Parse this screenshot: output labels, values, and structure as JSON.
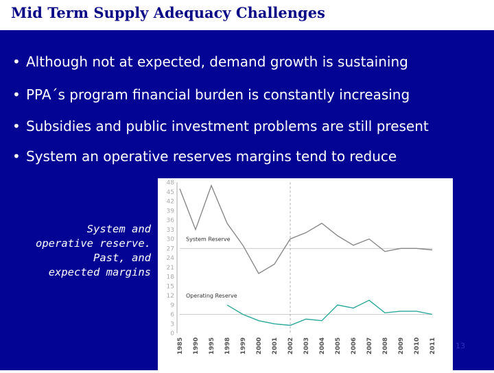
{
  "title": "Mid Term Supply Adequacy Challenges",
  "bullets": [
    "Although not at expected, demand growth is sustaining",
    "PPA´s program financial burden is constantly increasing",
    "Subsidies and public investment problems are still present",
    "System an operative reserves margins tend to reduce"
  ],
  "caption": [
    "System and",
    "operative reserve.",
    "Past, and",
    "expected margins"
  ],
  "page_number": "13",
  "colors": {
    "title": "#0a0a86",
    "panel": "#040494",
    "system_series": "#888888",
    "operating_series": "#2aa89a"
  },
  "chart_data": {
    "type": "line",
    "categories": [
      "1985",
      "1990",
      "1995",
      "1998",
      "1999",
      "2000",
      "2001",
      "2002",
      "2003",
      "2004",
      "2005",
      "2006",
      "2007",
      "2008",
      "2009",
      "2010",
      "2011"
    ],
    "y_ticks": [
      0,
      3,
      6,
      9,
      12,
      15,
      18,
      21,
      24,
      27,
      30,
      33,
      36,
      39,
      42,
      45,
      48
    ],
    "ylim": [
      0,
      48
    ],
    "series": [
      {
        "name": "System Reserve",
        "values": [
          46,
          33,
          47,
          35,
          28,
          19,
          22,
          30,
          32,
          35,
          31,
          28,
          30,
          26,
          27,
          27,
          26.5
        ]
      },
      {
        "name": "Operating Reserve",
        "values": [
          null,
          null,
          null,
          9,
          6,
          4,
          3,
          2.5,
          4.5,
          4,
          9,
          8,
          10.5,
          6.5,
          7,
          7,
          6
        ]
      }
    ],
    "reference_lines": {
      "horizontal": [
        27,
        6
      ],
      "vertical_category": "2002"
    }
  }
}
